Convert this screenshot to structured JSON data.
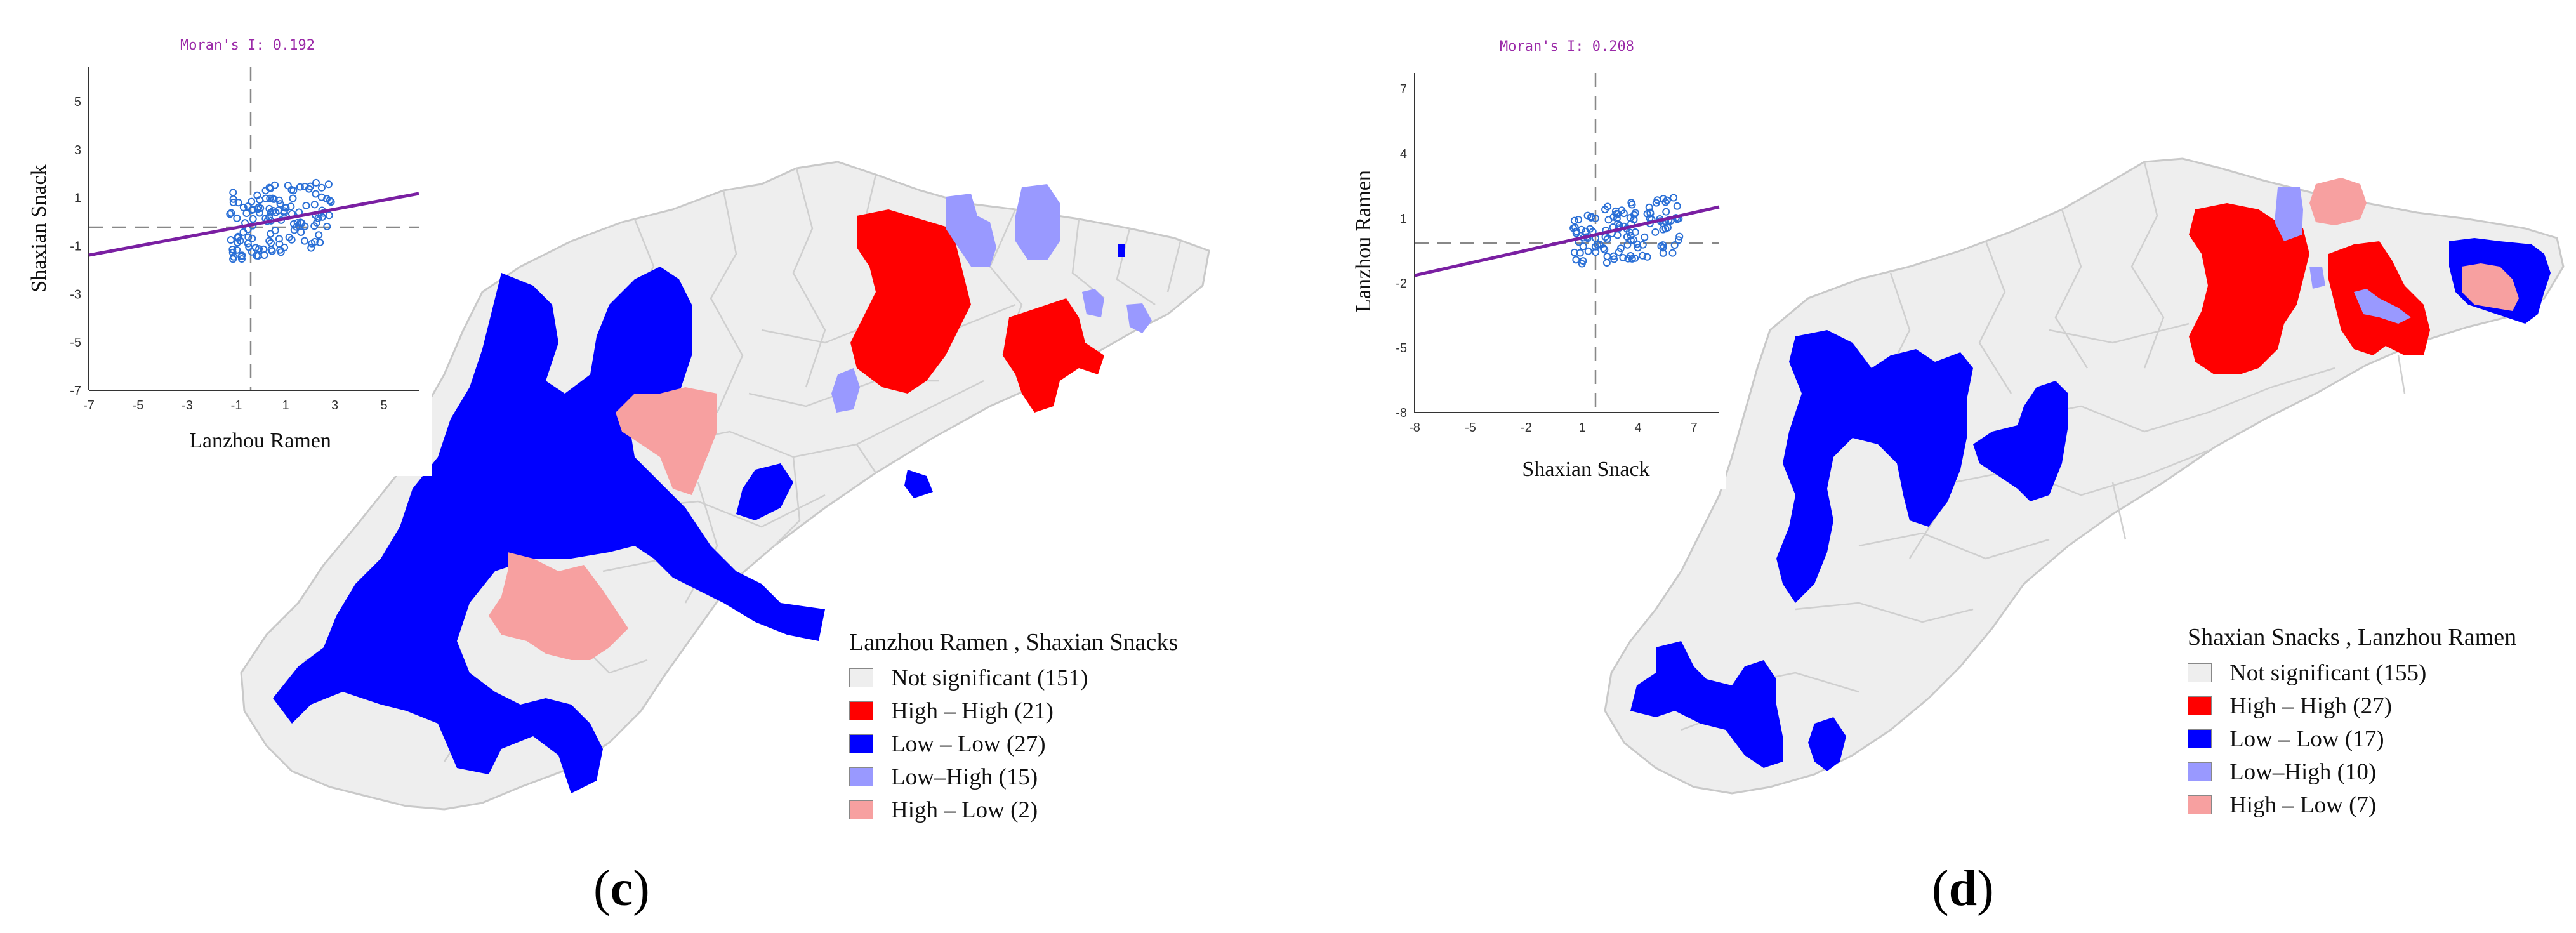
{
  "colors": {
    "not_significant": "#eeeeee",
    "high_high": "#ff0000",
    "low_low": "#0000ff",
    "low_high": "#9999ff",
    "high_low": "#f7a0a0",
    "boundary": "#c9c9c9",
    "regression": "#7a1fa2",
    "point": "#2a6fd6",
    "moran_text": "#9b2aa8"
  },
  "panels": [
    {
      "caption_letter": "c",
      "moran_label": "Moran's I: 0.192",
      "x_label": "Lanzhou Ramen",
      "y_label": "Shaxian Snack",
      "x_ticks": [
        "-7",
        "-5",
        "-3",
        "-1",
        "1",
        "3",
        "5"
      ],
      "y_ticks": [
        "5",
        "3",
        "1",
        "-1",
        "-3",
        "-5",
        "-7"
      ],
      "legend": {
        "title": "Lanzhou Ramen , Shaxian Snacks",
        "items": [
          {
            "key": "not_significant",
            "label": "Not significant (151)"
          },
          {
            "key": "high_high",
            "label": "High – High (21)"
          },
          {
            "key": "low_low",
            "label": "Low – Low (27)"
          },
          {
            "key": "low_high",
            "label": "Low–High (15)"
          },
          {
            "key": "high_low",
            "label": "High – Low (2)"
          }
        ]
      }
    },
    {
      "caption_letter": "d",
      "moran_label": "Moran's I: 0.208",
      "x_label": "Shaxian Snack",
      "y_label": "Lanzhou Ramen",
      "x_ticks": [
        "-8",
        "-5",
        "-2",
        "1",
        "4",
        "7"
      ],
      "y_ticks": [
        "7",
        "4",
        "1",
        "-2",
        "-5",
        "-8"
      ],
      "legend": {
        "title": "Shaxian Snacks , Lanzhou Ramen",
        "items": [
          {
            "key": "not_significant",
            "label": "Not significant (155)"
          },
          {
            "key": "high_high",
            "label": "High – High (27)"
          },
          {
            "key": "low_low",
            "label": "Low – Low (17)"
          },
          {
            "key": "low_high",
            "label": "Low–High (10)"
          },
          {
            "key": "high_low",
            "label": "High – Low (7)"
          }
        ]
      }
    }
  ]
}
